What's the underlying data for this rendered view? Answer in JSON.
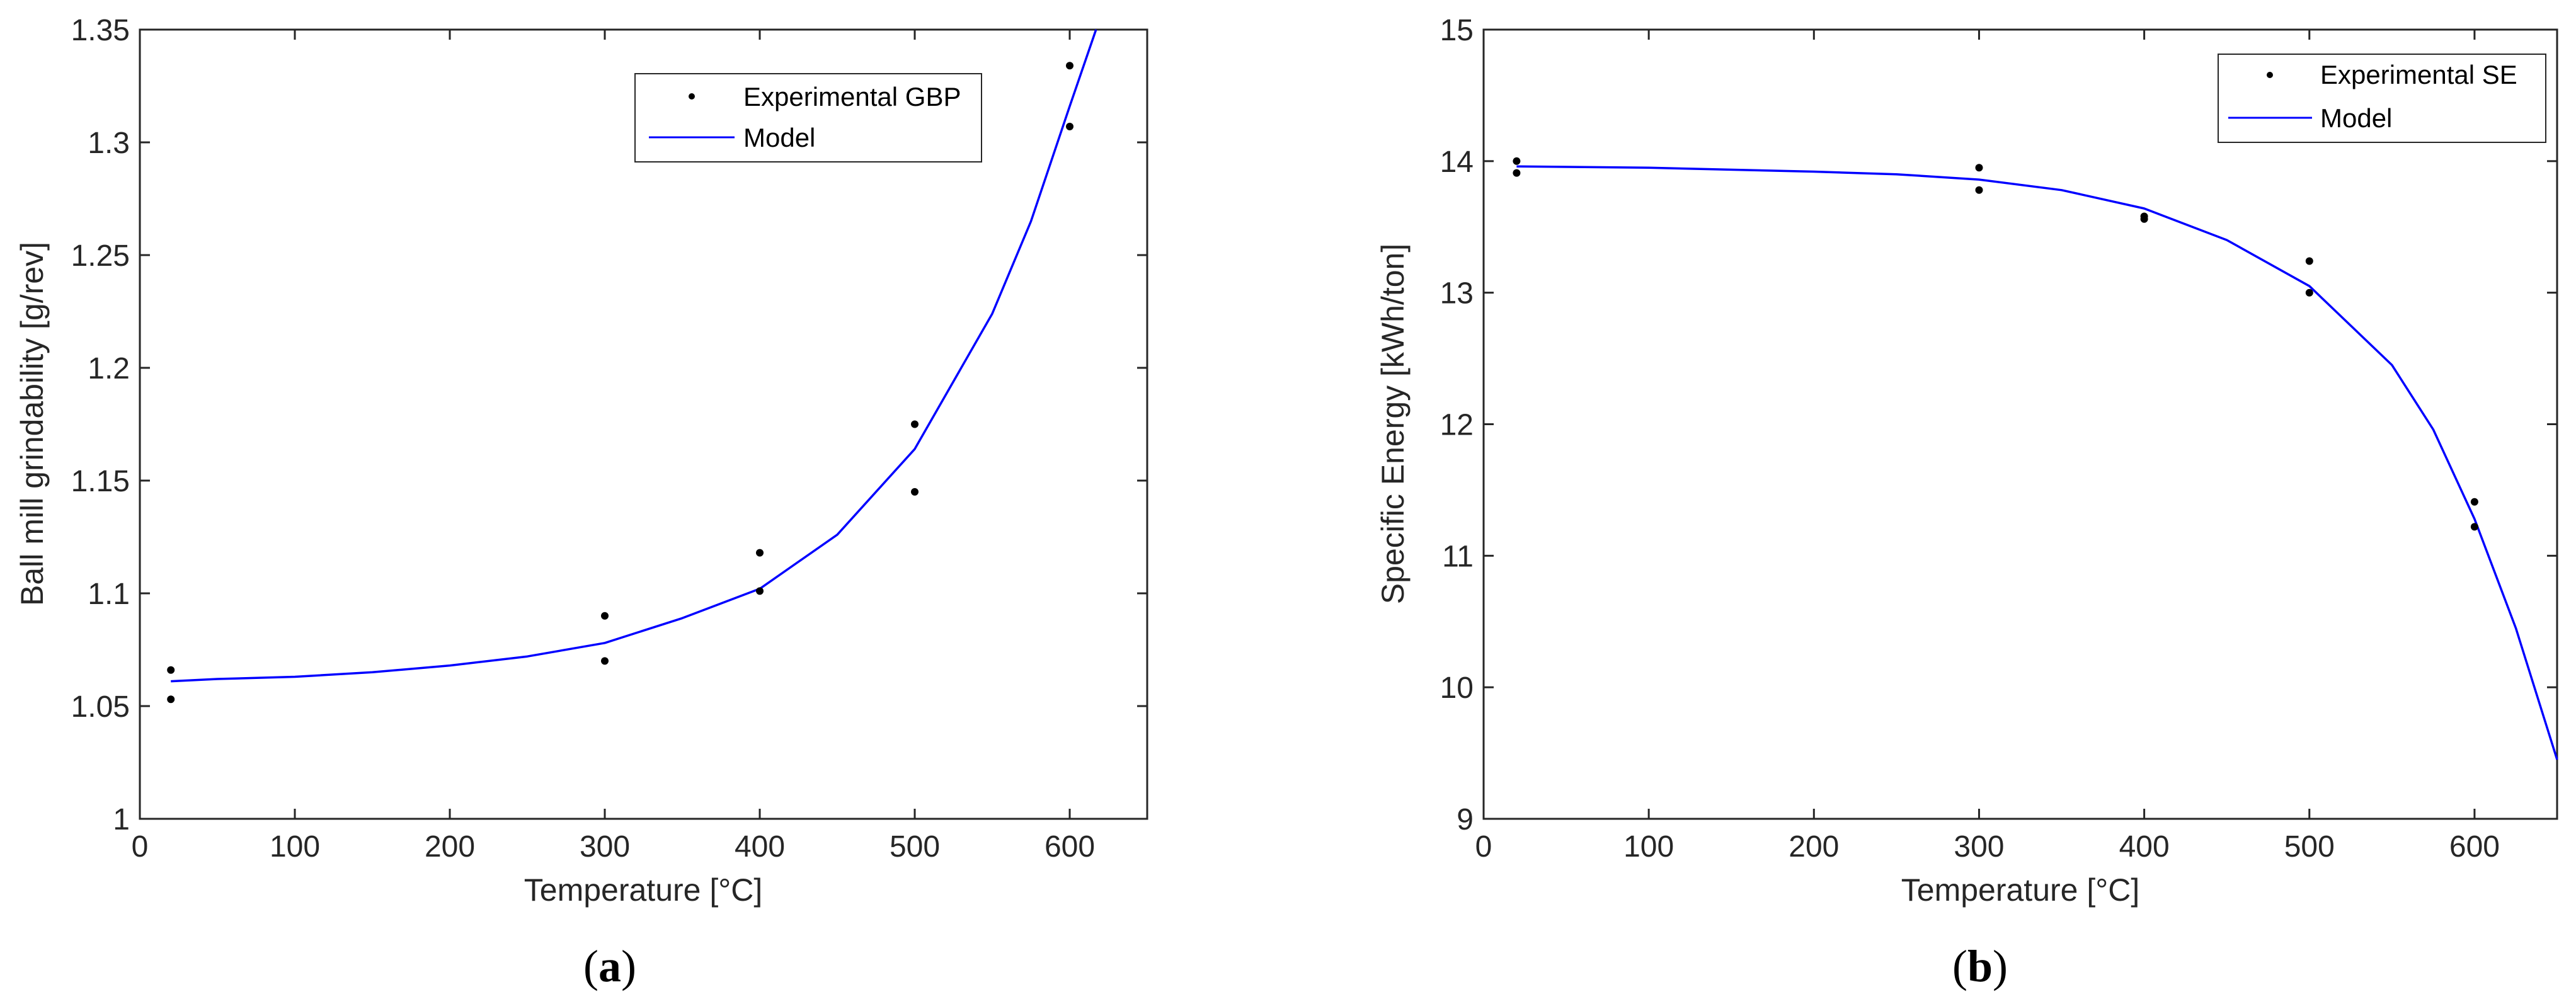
{
  "chart_data": [
    {
      "type": "scatter",
      "panel": "(a)",
      "panel_letter": "a",
      "xlabel": "Temperature [°C]",
      "ylabel": "Ball mill grindability [g/rev]",
      "xlim": [
        0,
        650
      ],
      "ylim": [
        1,
        1.35
      ],
      "xticks": [
        0,
        100,
        200,
        300,
        400,
        500,
        600
      ],
      "yticks": [
        1,
        1.05,
        1.1,
        1.15,
        1.2,
        1.25,
        1.3,
        1.35
      ],
      "ytick_labels": [
        "1",
        "1.05",
        "1.1",
        "1.15",
        "1.2",
        "1.25",
        "1.3",
        "1.35"
      ],
      "grid": false,
      "legend_position": "top-right",
      "series": [
        {
          "name": "Experimental GBP",
          "kind": "points",
          "color": "#000000",
          "x": [
            20,
            20,
            300,
            300,
            400,
            400,
            500,
            500,
            600,
            600
          ],
          "y": [
            1.066,
            1.053,
            1.09,
            1.07,
            1.118,
            1.101,
            1.175,
            1.145,
            1.334,
            1.307
          ]
        },
        {
          "name": "Model",
          "kind": "line",
          "color": "#0000ff",
          "x": [
            20,
            50,
            100,
            150,
            200,
            250,
            300,
            350,
            400,
            450,
            500,
            550,
            575,
            600,
            617
          ],
          "y": [
            1.061,
            1.062,
            1.063,
            1.065,
            1.068,
            1.072,
            1.078,
            1.089,
            1.102,
            1.126,
            1.164,
            1.224,
            1.265,
            1.316,
            1.35
          ]
        }
      ]
    },
    {
      "type": "scatter",
      "panel": "(b)",
      "panel_letter": "b",
      "xlabel": "Temperature [°C]",
      "ylabel": "Specific Energy [kWh/ton]",
      "xlim": [
        0,
        650
      ],
      "ylim": [
        9,
        15
      ],
      "xticks": [
        0,
        100,
        200,
        300,
        400,
        500,
        600
      ],
      "yticks": [
        9,
        10,
        11,
        12,
        13,
        14,
        15
      ],
      "ytick_labels": [
        "9",
        "10",
        "11",
        "12",
        "13",
        "14",
        "15"
      ],
      "grid": false,
      "legend_position": "top-right",
      "series": [
        {
          "name": "Experimental SE",
          "kind": "points",
          "color": "#000000",
          "x": [
            20,
            20,
            300,
            300,
            400,
            400,
            500,
            500,
            600,
            600
          ],
          "y": [
            14.0,
            13.91,
            13.95,
            13.78,
            13.58,
            13.56,
            13.24,
            13.0,
            11.41,
            11.22
          ]
        },
        {
          "name": "Model",
          "kind": "line",
          "color": "#0000ff",
          "x": [
            20,
            100,
            200,
            250,
            300,
            350,
            400,
            450,
            500,
            550,
            575,
            600,
            625,
            650
          ],
          "y": [
            13.96,
            13.95,
            13.92,
            13.9,
            13.86,
            13.78,
            13.64,
            13.4,
            13.05,
            12.45,
            11.96,
            11.28,
            10.45,
            9.45
          ]
        }
      ]
    }
  ]
}
